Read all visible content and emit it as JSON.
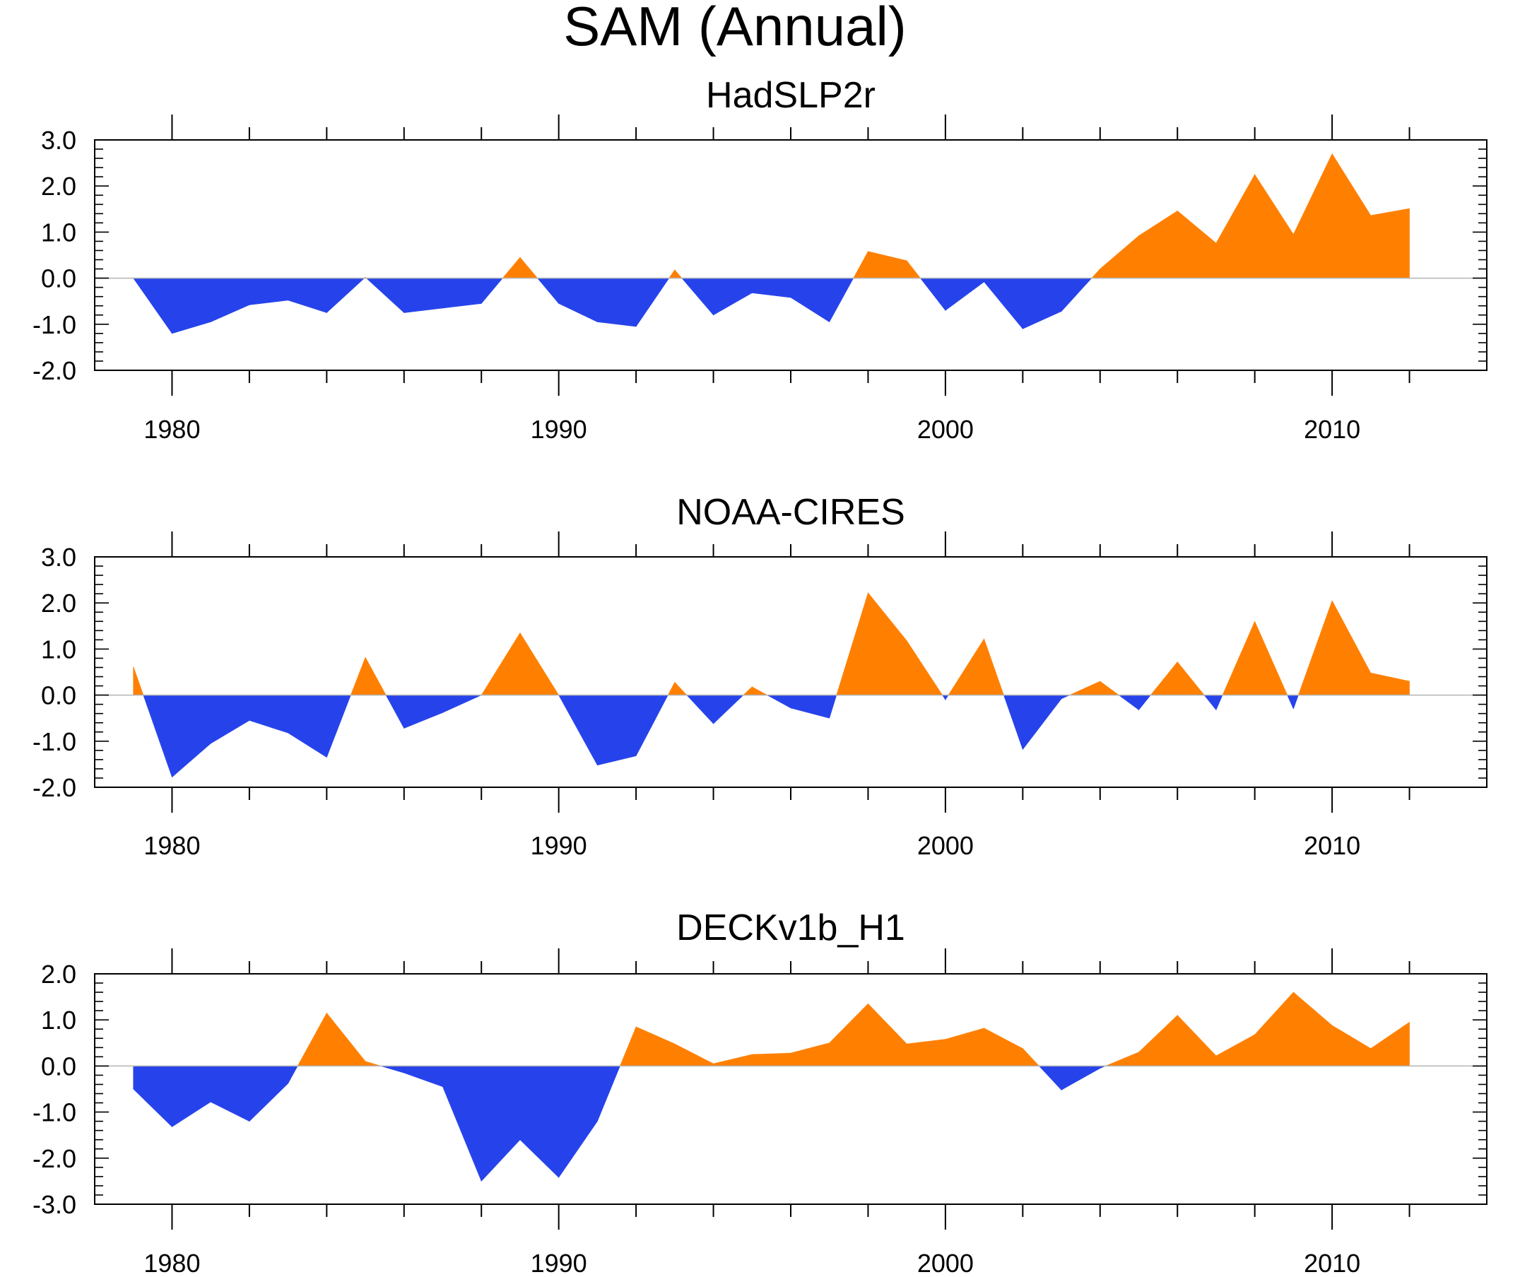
{
  "title": "SAM (Annual)",
  "colors": {
    "positive": "#ff8000",
    "negative": "#2643eb",
    "axis": "#000000",
    "zero_line": "#b4b4b4"
  },
  "chart_data": [
    {
      "type": "area",
      "title": "HadSLP2r",
      "xlabel": "",
      "ylabel": "",
      "xlim": [
        1978,
        2014
      ],
      "ylim": [
        -2,
        3
      ],
      "x_ticks": [
        1980,
        1990,
        2000,
        2010
      ],
      "y_ticks": [
        "3.0",
        "2.0",
        "1.0",
        "0.0",
        "-1.0",
        "-2.0"
      ],
      "years": [
        1979,
        1980,
        1981,
        1982,
        1983,
        1984,
        1985,
        1986,
        1987,
        1988,
        1989,
        1990,
        1991,
        1992,
        1993,
        1994,
        1995,
        1996,
        1997,
        1998,
        1999,
        2000,
        2001,
        2002,
        2003,
        2004,
        2005,
        2006,
        2007,
        2008,
        2009,
        2010,
        2011,
        2012
      ],
      "values": [
        0.0,
        -1.2,
        -0.95,
        -0.58,
        -0.48,
        -0.75,
        0.02,
        -0.75,
        -0.65,
        -0.55,
        0.45,
        -0.55,
        -0.95,
        -1.05,
        0.18,
        -0.8,
        -0.32,
        -0.42,
        -0.95,
        0.58,
        0.38,
        -0.7,
        -0.08,
        -1.1,
        -0.72,
        0.2,
        0.92,
        1.46,
        0.76,
        2.25,
        0.95,
        2.7,
        1.36,
        1.51
      ]
    },
    {
      "type": "area",
      "title": "NOAA-CIRES",
      "xlabel": "",
      "ylabel": "",
      "xlim": [
        1978,
        2014
      ],
      "ylim": [
        -2,
        3
      ],
      "x_ticks": [
        1980,
        1990,
        2000,
        2010
      ],
      "y_ticks": [
        "3.0",
        "2.0",
        "1.0",
        "0.0",
        "-1.0",
        "-2.0"
      ],
      "years": [
        1979,
        1980,
        1981,
        1982,
        1983,
        1984,
        1985,
        1986,
        1987,
        1988,
        1989,
        1990,
        1991,
        1992,
        1993,
        1994,
        1995,
        1996,
        1997,
        1998,
        1999,
        2000,
        2001,
        2002,
        2003,
        2004,
        2005,
        2006,
        2007,
        2008,
        2009,
        2010,
        2011,
        2012
      ],
      "values": [
        0.62,
        -1.78,
        -1.05,
        -0.55,
        -0.82,
        -1.35,
        0.82,
        -0.72,
        -0.38,
        0.0,
        1.35,
        0.0,
        -1.52,
        -1.32,
        0.28,
        -0.62,
        0.18,
        -0.28,
        -0.5,
        2.22,
        1.18,
        -0.1,
        1.22,
        -1.18,
        -0.08,
        0.3,
        -0.32,
        0.72,
        -0.32,
        1.6,
        -0.3,
        2.05,
        0.48,
        0.3
      ]
    },
    {
      "type": "area",
      "title": "DECKv1b_H1",
      "xlabel": "",
      "ylabel": "",
      "xlim": [
        1978,
        2014
      ],
      "ylim": [
        -3,
        2
      ],
      "x_ticks": [
        1980,
        1990,
        2000,
        2010
      ],
      "y_ticks": [
        "2.0",
        "1.0",
        "0.0",
        "-1.0",
        "-2.0",
        "-3.0"
      ],
      "years": [
        1979,
        1980,
        1981,
        1982,
        1983,
        1984,
        1985,
        1986,
        1987,
        1988,
        1989,
        1990,
        1991,
        1992,
        1993,
        1994,
        1995,
        1996,
        1997,
        1998,
        1999,
        2000,
        2001,
        2002,
        2003,
        2004,
        2005,
        2006,
        2007,
        2008,
        2009,
        2010,
        2011,
        2012
      ],
      "values": [
        -0.5,
        -1.32,
        -0.78,
        -1.2,
        -0.38,
        1.15,
        0.1,
        -0.15,
        -0.45,
        -2.5,
        -1.6,
        -2.42,
        -1.2,
        0.85,
        0.48,
        0.05,
        0.25,
        0.28,
        0.5,
        1.35,
        0.48,
        0.58,
        0.82,
        0.38,
        -0.52,
        -0.05,
        0.3,
        1.1,
        0.22,
        0.68,
        1.6,
        0.88,
        0.38,
        0.95
      ]
    }
  ]
}
